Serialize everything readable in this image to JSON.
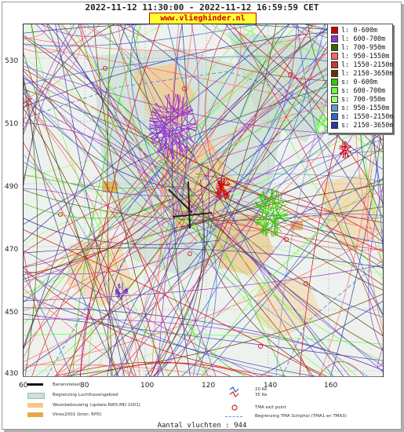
{
  "header": {
    "title": "2022-11-12 11:30:00 - 2022-11-12 16:59:59 CET",
    "site": "www.vlieghinder.nl"
  },
  "axes": {
    "y_ticks": [
      "530",
      "510",
      "490",
      "470",
      "450",
      "430"
    ],
    "x_ticks": [
      "60",
      "80",
      "100",
      "120",
      "140",
      "160"
    ]
  },
  "legend": {
    "items": [
      {
        "label": "l: 0-600m",
        "color": "#cc0000"
      },
      {
        "label": "l: 600-700m",
        "color": "#9933cc"
      },
      {
        "label": "l: 700-950m",
        "color": "#336600"
      },
      {
        "label": "l: 950-1550m",
        "color": "#ff6666"
      },
      {
        "label": "l: 1550-2150m",
        "color": "#cc3333"
      },
      {
        "label": "l: 2150-3650m",
        "color": "#663300"
      },
      {
        "label": "s: 0-600m",
        "color": "#33cc00"
      },
      {
        "label": "s: 600-700m",
        "color": "#66ff33"
      },
      {
        "label": "s: 700-950m",
        "color": "#99ff66"
      },
      {
        "label": "s: 950-1550m",
        "color": "#6699cc"
      },
      {
        "label": "s: 1550-2150m",
        "color": "#3366cc"
      },
      {
        "label": "s: 2150-3650m",
        "color": "#333399"
      }
    ]
  },
  "footer": {
    "runways": "Banenstelsel",
    "airport_boundary": "Begrenzing Luchthavengebied",
    "housing": "Woonbebouwing (update RWS-MD 2001)",
    "vinex": "Vinex2001 (bron: RPD)",
    "kv20": "20 Ke",
    "kv35": "35 Ke",
    "tma_exit": "TMA exit point",
    "tma_boundary": "Begrenzing TMA Schiphol  (TMA1 en TMA3)"
  },
  "summary": {
    "flights": "Aantal vluchten : 944"
  }
}
